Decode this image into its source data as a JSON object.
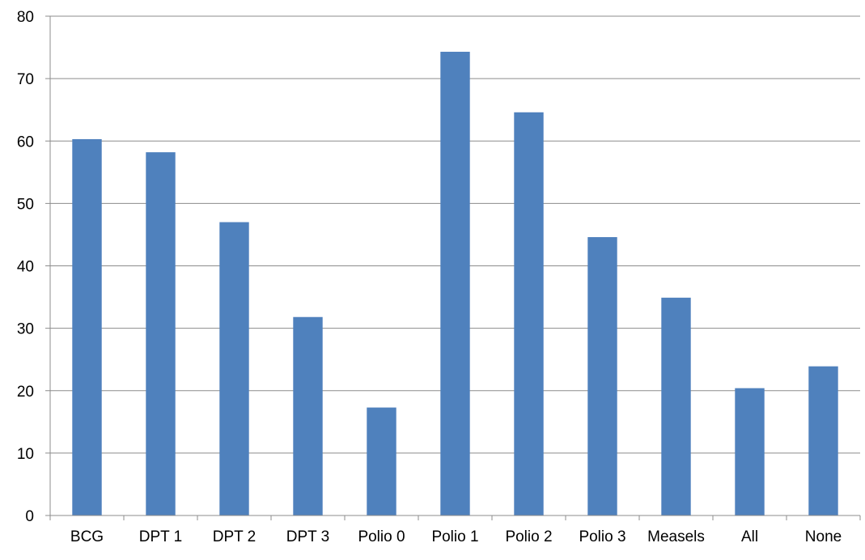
{
  "chart_data": {
    "type": "bar",
    "title": "",
    "xlabel": "",
    "ylabel": "",
    "categories": [
      "BCG",
      "DPT 1",
      "DPT 2",
      "DPT 3",
      "Polio 0",
      "Polio 1",
      "Polio 2",
      "Polio 3",
      "Measels",
      "All",
      "None"
    ],
    "values": [
      60.3,
      58.2,
      47.0,
      31.8,
      17.3,
      74.3,
      64.6,
      44.6,
      34.9,
      20.4,
      23.9
    ],
    "ylim": [
      0,
      80
    ],
    "yticks": [
      0,
      10,
      20,
      30,
      40,
      50,
      60,
      70,
      80
    ],
    "ytick_labels": [
      "0",
      "10",
      "20",
      "30",
      "40",
      "50",
      "60",
      "70",
      "80"
    ],
    "grid": "horizontal",
    "legend": "none",
    "bar_color": "#4f81bd",
    "gridline_color": "#8c8c8c",
    "axis_color": "#8c8c8c"
  }
}
